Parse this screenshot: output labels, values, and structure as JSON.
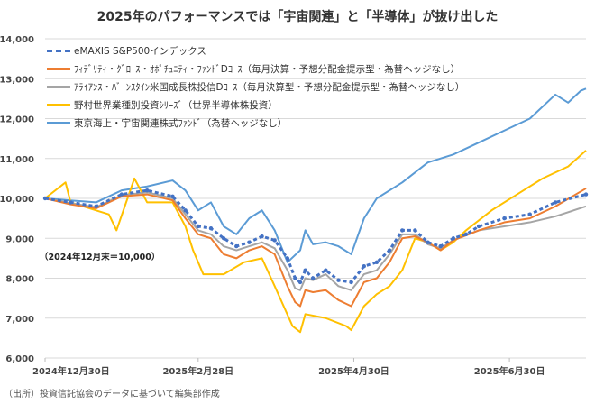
{
  "chart_data": {
    "type": "line",
    "title": "2025年のパフォーマンスでは「宇宙関連」と「半導体」が抜け出した",
    "xlabel": "",
    "ylabel": "",
    "ylim": [
      6000,
      14000
    ],
    "yticks": [
      6000,
      7000,
      8000,
      9000,
      10000,
      11000,
      12000,
      13000,
      14000
    ],
    "ytick_labels": [
      "6,000",
      "7,000",
      "8,000",
      "9,000",
      "10,000",
      "11,000",
      "12,000",
      "13,000",
      "14,000"
    ],
    "xlim_days": [
      0,
      212
    ],
    "xticks": [
      {
        "day": 0,
        "label": "2024年12月30日"
      },
      {
        "day": 60,
        "label": "2025年2月28日"
      },
      {
        "day": 121,
        "label": "2025年4月30日"
      },
      {
        "day": 182,
        "label": "2025年6月30日"
      }
    ],
    "grid": true,
    "legend_position": "top-left",
    "annotation": "（2024年12月末＝10,000）",
    "series": [
      {
        "name": "eMAXIS S&P500インデックス",
        "color": "#4472c4",
        "style": "dashed-dot",
        "x": [
          0,
          10,
          20,
          30,
          40,
          50,
          55,
          60,
          65,
          70,
          75,
          80,
          85,
          90,
          95,
          98,
          100,
          102,
          105,
          110,
          115,
          120,
          125,
          130,
          135,
          140,
          145,
          150,
          155,
          160,
          165,
          170,
          180,
          190,
          200,
          212
        ],
        "y": [
          10000,
          9900,
          9800,
          10100,
          10200,
          10050,
          9700,
          9300,
          9250,
          9000,
          8800,
          8900,
          9050,
          8950,
          8500,
          8000,
          7900,
          8200,
          8000,
          8200,
          7950,
          7900,
          8300,
          8400,
          8700,
          9200,
          9200,
          8900,
          8800,
          9000,
          9100,
          9300,
          9500,
          9600,
          9900,
          10100
        ]
      },
      {
        "name": "ﾌｨﾃﾞﾘﾃｨ・ｸﾞﾛｰｽ・ｵﾎﾟﾁｭﾆﾃｨ・ﾌｧﾝﾄﾞDｺｰｽ（毎月決算・予想分配金提示型・為替ヘッジなし）",
        "color": "#ed7d31",
        "style": "solid",
        "x": [
          0,
          10,
          20,
          30,
          40,
          50,
          55,
          60,
          65,
          70,
          75,
          80,
          85,
          90,
          95,
          98,
          100,
          102,
          105,
          110,
          115,
          120,
          125,
          130,
          135,
          140,
          145,
          150,
          155,
          160,
          170,
          180,
          190,
          200,
          212
        ],
        "y": [
          10000,
          9850,
          9750,
          10050,
          10100,
          9950,
          9500,
          9100,
          9000,
          8600,
          8500,
          8700,
          8800,
          8600,
          7800,
          7400,
          7300,
          7700,
          7650,
          7700,
          7450,
          7300,
          7900,
          8000,
          8400,
          9000,
          9050,
          8900,
          8700,
          8950,
          9200,
          9400,
          9500,
          9800,
          10250
        ]
      },
      {
        "name": "ｱﾗｲｱﾝｽ・ﾊﾞｰﾝｽﾀｲﾝ米国成長株投信Dｺｰｽ（毎月決算型・予想分配金提示型・為替ヘッジなし）",
        "color": "#a5a5a5",
        "style": "solid",
        "x": [
          0,
          10,
          20,
          30,
          40,
          50,
          55,
          60,
          65,
          70,
          75,
          80,
          85,
          90,
          95,
          98,
          100,
          102,
          105,
          110,
          115,
          120,
          125,
          130,
          135,
          140,
          145,
          150,
          155,
          160,
          170,
          180,
          190,
          200,
          212
        ],
        "y": [
          10000,
          9880,
          9780,
          10080,
          10150,
          10000,
          9600,
          9200,
          9100,
          8800,
          8700,
          8800,
          8900,
          8750,
          8200,
          7750,
          7700,
          8000,
          7950,
          8100,
          7800,
          7700,
          8100,
          8200,
          8600,
          9100,
          9100,
          8850,
          8750,
          8950,
          9200,
          9300,
          9400,
          9550,
          9800
        ]
      },
      {
        "name": "野村世界業種別投資ｼﾘｰｽﾞ（世界半導体株投資）",
        "color": "#ffc000",
        "style": "solid",
        "x": [
          0,
          8,
          10,
          20,
          25,
          28,
          35,
          40,
          50,
          55,
          58,
          62,
          70,
          78,
          85,
          90,
          97,
          100,
          102,
          110,
          118,
          120,
          125,
          130,
          135,
          140,
          145,
          150,
          155,
          160,
          165,
          175,
          185,
          195,
          205,
          212
        ],
        "y": [
          10000,
          10400,
          9900,
          9700,
          9600,
          9200,
          10500,
          9900,
          9900,
          9300,
          8700,
          8100,
          8100,
          8400,
          8500,
          7800,
          6800,
          6650,
          7100,
          7000,
          6800,
          6700,
          7300,
          7600,
          7800,
          8200,
          9000,
          8900,
          8700,
          8900,
          9200,
          9700,
          10100,
          10500,
          10800,
          11200
        ]
      },
      {
        "name": "東京海上・宇宙関連株式ﾌｧﾝﾄﾞ（為替ヘッジなし）",
        "color": "#5b9bd5",
        "style": "solid",
        "x": [
          0,
          10,
          20,
          30,
          40,
          50,
          55,
          60,
          65,
          70,
          75,
          80,
          85,
          90,
          95,
          100,
          102,
          105,
          110,
          115,
          120,
          125,
          130,
          140,
          150,
          160,
          170,
          180,
          190,
          200,
          205,
          210,
          212
        ],
        "y": [
          10000,
          9950,
          9900,
          10200,
          10300,
          10450,
          10200,
          9700,
          9900,
          9300,
          9100,
          9500,
          9700,
          9200,
          8400,
          8700,
          9200,
          8850,
          8900,
          8800,
          8600,
          9500,
          10000,
          10400,
          10900,
          11100,
          11400,
          11700,
          12000,
          12600,
          12400,
          12700,
          12750
        ]
      }
    ]
  },
  "source": "（出所）投資信託協会のデータに基づいて編集部作成"
}
